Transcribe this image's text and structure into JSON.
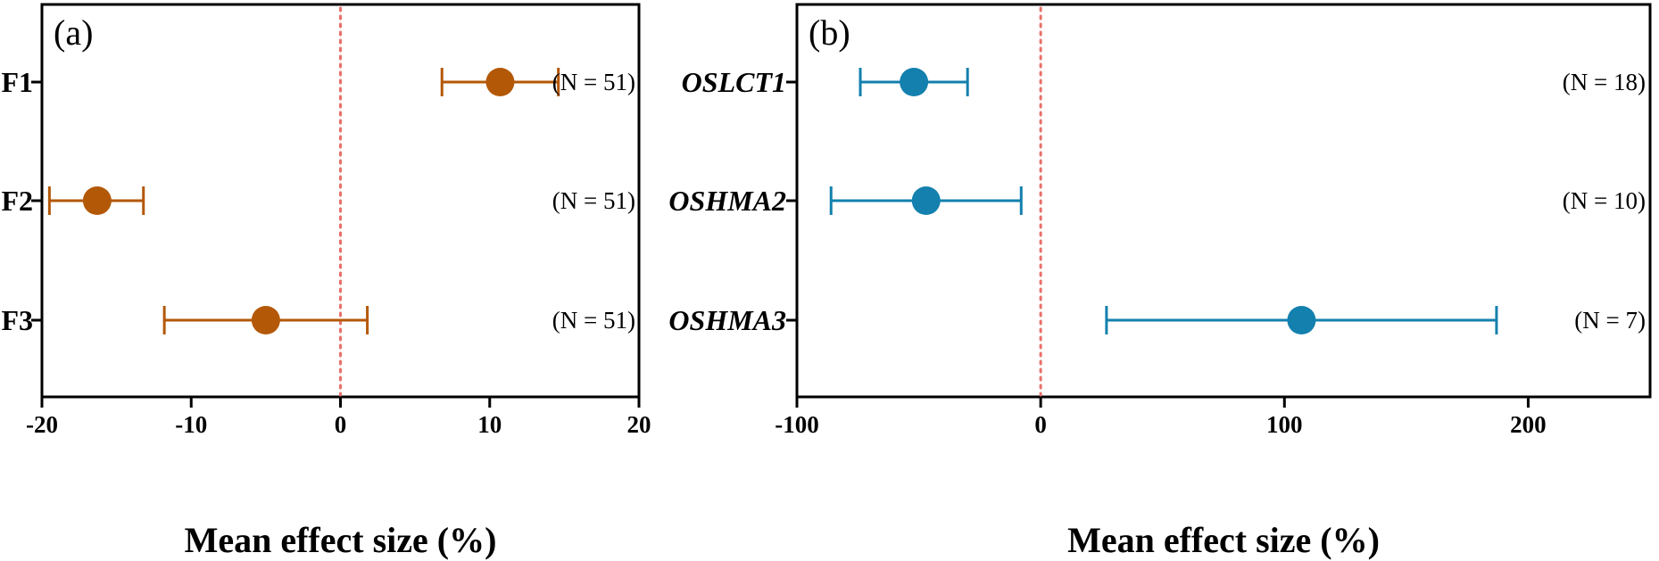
{
  "chart_data": [
    {
      "type": "forest",
      "panel_label": "(a)",
      "xlabel": "Mean effect size (%)",
      "xlim": [
        -20,
        20
      ],
      "xticks": [
        -20,
        -10,
        0,
        10,
        20
      ],
      "reference_line": 0,
      "color": "#b35806",
      "italic_labels": false,
      "rows": [
        {
          "label": "F1",
          "mean": 10.7,
          "lower": 6.8,
          "upper": 14.6,
          "n_label": "(N = 51)"
        },
        {
          "label": "F2",
          "mean": -16.3,
          "lower": -19.5,
          "upper": -13.2,
          "n_label": "(N = 51)"
        },
        {
          "label": "F3",
          "mean": -5.0,
          "lower": -11.8,
          "upper": 1.8,
          "n_label": "(N = 51)"
        }
      ]
    },
    {
      "type": "forest",
      "panel_label": "(b)",
      "xlabel": "Mean effect size (%)",
      "xlim": [
        -100,
        250
      ],
      "xticks": [
        -100,
        0,
        100,
        200
      ],
      "reference_line": 0,
      "color": "#1380ae",
      "italic_labels": true,
      "rows": [
        {
          "label": "OSLCT1",
          "mean": -52,
          "lower": -74,
          "upper": -30,
          "n_label": "(N = 18)"
        },
        {
          "label": "OSHMA2",
          "mean": -47,
          "lower": -86,
          "upper": -8,
          "n_label": "(N = 10)"
        },
        {
          "label": "OSHMA3",
          "mean": 107,
          "lower": 27,
          "upper": 187,
          "n_label": "(N = 7)"
        }
      ]
    }
  ]
}
